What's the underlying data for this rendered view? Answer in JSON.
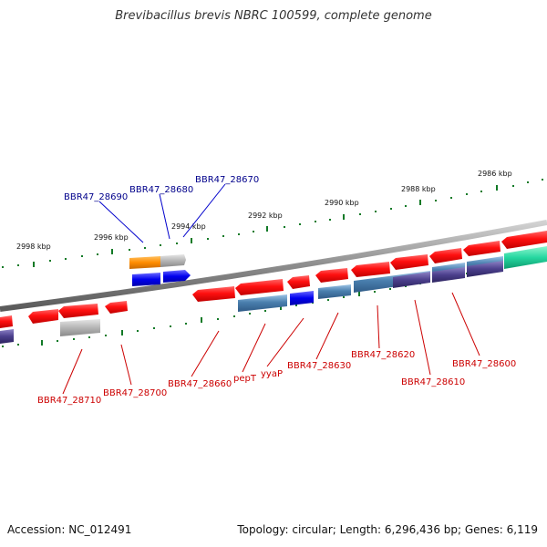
{
  "title": "Brevibacillus brevis NBRC 100599, complete genome",
  "footer": {
    "accession": "Accession: NC_012491",
    "info": "Topology: circular; Length: 6,296,436 bp; Genes: 6,119"
  },
  "ticks": [
    "2986 kbp",
    "2988 kbp",
    "2990 kbp",
    "2992 kbp",
    "2994 kbp",
    "2996 kbp",
    "2998 kbp"
  ],
  "genes_top": [
    "BBR47_28670",
    "BBR47_28680",
    "BBR47_28690"
  ],
  "genes_bottom": [
    "BBR47_28600",
    "BBR47_28610",
    "BBR47_28620",
    "BBR47_28630",
    "yyaP",
    "pepT",
    "BBR47_28660",
    "BBR47_28700",
    "BBR47_28710"
  ],
  "colors": {
    "forward_gene": "#dd0000",
    "reverse_gene": "#cc0000",
    "label_blue": "#00008b",
    "label_red": "#cc0000",
    "cds_blue": "#4a7fae",
    "cds_purple": "#4b3f8c",
    "orange": "#ff8c00",
    "grey": "#b5b5b5",
    "teal": "#25d7a0",
    "tick_green": "#127a27",
    "backbone": "#888888"
  }
}
